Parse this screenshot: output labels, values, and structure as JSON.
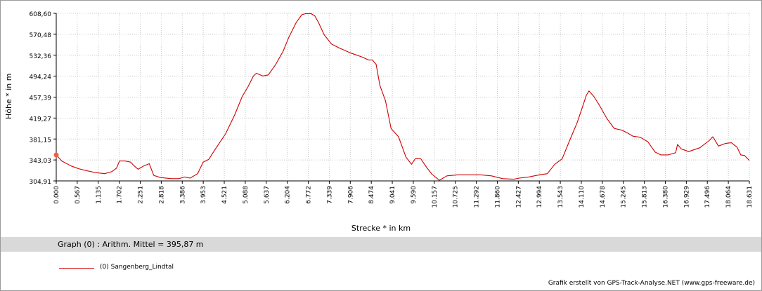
{
  "chart_data": {
    "type": "line",
    "xlabel": "Strecke *  in  km",
    "ylabel": "Höhe *  in  m",
    "xlim": [
      0.0,
      18.631
    ],
    "ylim": [
      304.91,
      608.6
    ],
    "yticks": [
      "304,91",
      "343,03",
      "381,15",
      "419,27",
      "457,39",
      "494,24",
      "532,36",
      "570,48",
      "608,60"
    ],
    "xticks": [
      "0.000",
      "0.567",
      "1.135",
      "1.702",
      "2.251",
      "2.818",
      "3.386",
      "3.953",
      "4.521",
      "5.088",
      "5.637",
      "6.204",
      "6.772",
      "7.339",
      "7.906",
      "8.474",
      "9.041",
      "9.590",
      "10.157",
      "10.725",
      "11.292",
      "11.860",
      "12.427",
      "12.994",
      "13.543",
      "14.110",
      "14.678",
      "15.245",
      "15.813",
      "16.380",
      "16.929",
      "17.496",
      "18.064",
      "18.631"
    ],
    "grid": true,
    "series": [
      {
        "name": "(0) Sangenberg_Lindtal",
        "color": "#d00000",
        "x": [
          0.0,
          0.15,
          0.4,
          0.6,
          0.85,
          1.05,
          1.3,
          1.5,
          1.62,
          1.7,
          1.85,
          2.0,
          2.1,
          2.2,
          2.35,
          2.5,
          2.62,
          2.8,
          3.1,
          3.3,
          3.45,
          3.6,
          3.8,
          3.95,
          4.1,
          4.3,
          4.55,
          4.8,
          5.0,
          5.15,
          5.3,
          5.38,
          5.45,
          5.55,
          5.7,
          5.9,
          6.1,
          6.25,
          6.45,
          6.6,
          6.7,
          6.85,
          6.95,
          7.05,
          7.2,
          7.4,
          7.6,
          7.9,
          8.2,
          8.4,
          8.5,
          8.6,
          8.7,
          8.85,
          9.0,
          9.2,
          9.4,
          9.55,
          9.65,
          9.8,
          9.95,
          10.1,
          10.3,
          10.5,
          10.8,
          11.1,
          11.4,
          11.7,
          12.0,
          12.3,
          12.45,
          12.7,
          12.99,
          13.2,
          13.4,
          13.6,
          13.8,
          14.0,
          14.15,
          14.25,
          14.32,
          14.45,
          14.6,
          14.8,
          15.0,
          15.2,
          15.35,
          15.5,
          15.7,
          15.9,
          16.1,
          16.25,
          16.45,
          16.65,
          16.7,
          16.8,
          17.0,
          17.3,
          17.55,
          17.65,
          17.8,
          18.0,
          18.15,
          18.3,
          18.4,
          18.5,
          18.631
        ],
        "y": [
          352,
          341,
          332,
          327,
          323,
          320,
          318,
          322,
          328,
          341,
          341,
          339,
          332,
          326,
          332,
          336,
          315,
          311,
          309,
          309,
          312,
          310,
          318,
          339,
          344,
          365,
          390,
          425,
          458,
          475,
          495,
          500,
          498,
          495,
          497,
          516,
          540,
          565,
          592,
          606,
          608,
          608,
          604,
          592,
          570,
          553,
          546,
          537,
          530,
          524,
          524,
          516,
          478,
          450,
          400,
          385,
          348,
          335,
          345,
          345,
          330,
          317,
          306,
          314,
          316,
          316,
          316,
          314,
          309,
          308,
          310,
          312,
          316,
          318,
          335,
          345,
          378,
          410,
          440,
          460,
          468,
          458,
          442,
          418,
          400,
          397,
          392,
          386,
          384,
          376,
          357,
          352,
          352,
          356,
          371,
          363,
          358,
          365,
          378,
          385,
          368,
          373,
          374,
          366,
          352,
          351,
          342
        ]
      }
    ],
    "marker": {
      "x": 0.0,
      "y": 352,
      "color": "#f06040"
    }
  },
  "labels": {
    "stat_text": "Graph (0) :  Arithm. Mittel = 395,87 m",
    "legend_label": "(0) Sangenberg_Lindtal",
    "credit": "Grafik erstellt von GPS-Track-Analyse.NET (www.gps-freeware.de)"
  }
}
